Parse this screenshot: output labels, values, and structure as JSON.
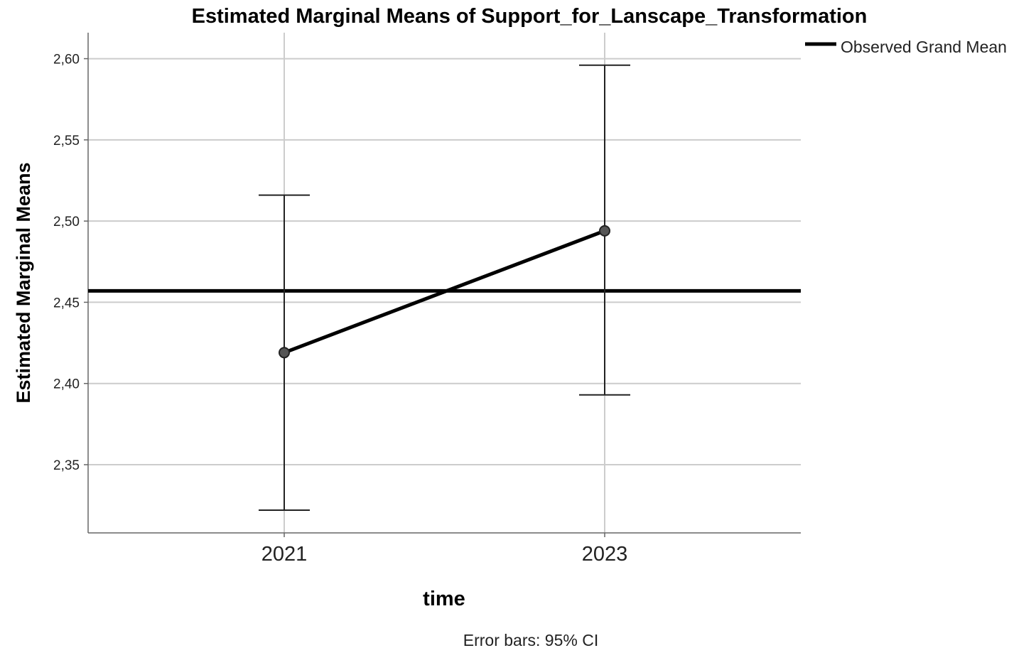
{
  "chart_data": {
    "type": "line",
    "title": "Estimated Marginal Means of Support_for_Lanscape_Transformation",
    "xlabel": "time",
    "ylabel": "Estimated Marginal Means",
    "categories": [
      "2021",
      "2023"
    ],
    "ylim": [
      2.308,
      2.616
    ],
    "yticks": [
      "2,35",
      "2,40",
      "2,45",
      "2,50",
      "2,55",
      "2,60"
    ],
    "ytick_values": [
      2.35,
      2.4,
      2.45,
      2.5,
      2.55,
      2.6
    ],
    "series": [
      {
        "values": [
          2.419,
          2.494
        ],
        "error_lower": [
          2.322,
          2.393
        ],
        "error_upper": [
          2.516,
          2.596
        ]
      }
    ],
    "reference_line": {
      "name": "Observed Grand Mean",
      "value": 2.457
    },
    "legend": {
      "position": "top-right",
      "entries": [
        "Observed Grand Mean"
      ]
    },
    "footnote": "Error bars: 95% CI",
    "grid": true,
    "colors": {
      "series": "#000000",
      "marker": "#555555",
      "grid": "#cccccc",
      "axis": "#666666"
    }
  }
}
